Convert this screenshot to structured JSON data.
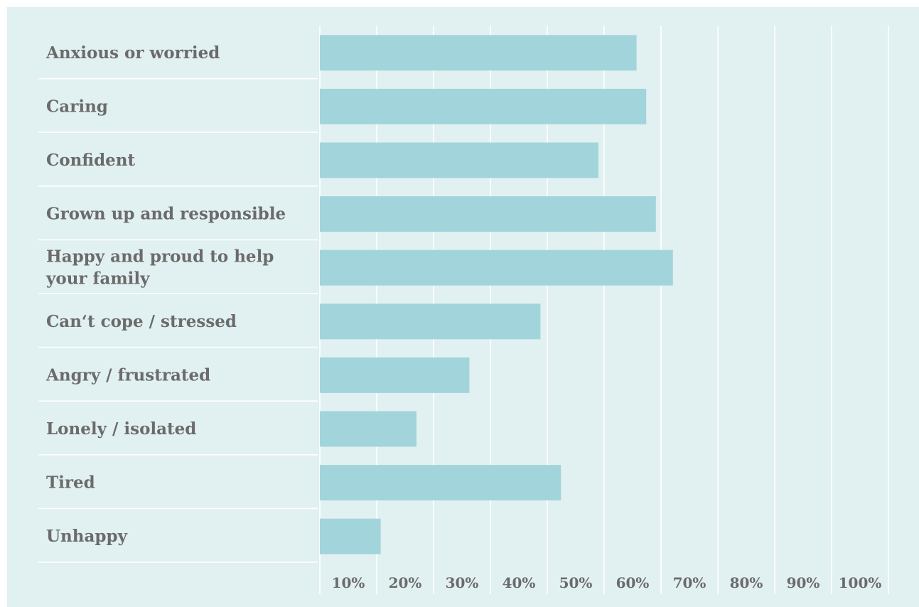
{
  "chart_data": {
    "type": "bar",
    "orientation": "horizontal",
    "categories": [
      "Anxious or worried",
      "Caring",
      "Confident",
      "Grown up and responsible",
      "Happy and proud to help your family",
      "Can‘t cope / stressed",
      "Angry / frustrated",
      "Lonely / isolated",
      "Tired",
      "Unhappy"
    ],
    "values": [
      55.7,
      57.4,
      49.0,
      59.1,
      62.1,
      38.8,
      26.3,
      17.0,
      42.4,
      10.7
    ],
    "xlim": [
      0,
      100
    ],
    "x_ticks": [
      {
        "value": 10,
        "label": "10%"
      },
      {
        "value": 20,
        "label": "20%"
      },
      {
        "value": 30,
        "label": "30%"
      },
      {
        "value": 40,
        "label": "40%"
      },
      {
        "value": 50,
        "label": "50%"
      },
      {
        "value": 60,
        "label": "60%"
      },
      {
        "value": 70,
        "label": "70%"
      },
      {
        "value": 80,
        "label": "80%"
      },
      {
        "value": 90,
        "label": "90%"
      },
      {
        "value": 100,
        "label": "100%"
      }
    ],
    "grid": "vertical",
    "colors": {
      "background": "#e1f0f1",
      "bar": "#a2d5db",
      "gridline": "#ffffff",
      "text": "#6b6b6b"
    }
  }
}
